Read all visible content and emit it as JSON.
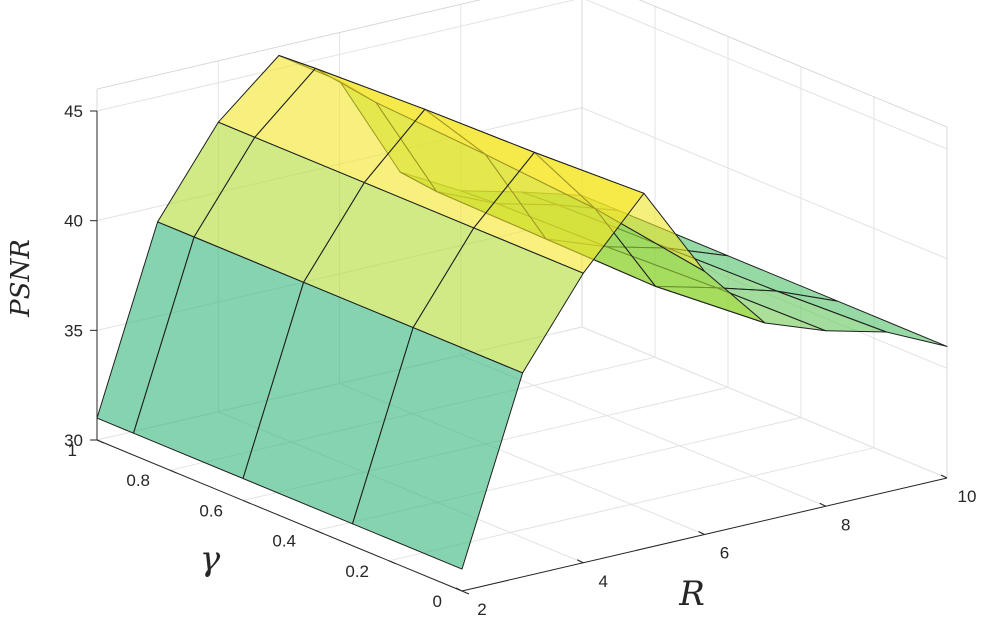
{
  "chart_data": {
    "type": "surface3d",
    "title": "",
    "xlabel": "R",
    "ylabel": "γ",
    "zlabel": "PSNR",
    "xlim": [
      2,
      10
    ],
    "ylim": [
      0,
      1
    ],
    "zlim": [
      30,
      45
    ],
    "grid": true,
    "colormap": "viridis (partial: teal to yellow-green), transparent faces",
    "x_ticks": [
      "2",
      "4",
      "6",
      "8",
      "10"
    ],
    "y_ticks": [
      "0",
      "0.2",
      "0.4",
      "0.6",
      "0.8",
      "1"
    ],
    "z_ticks": [
      "30",
      "35",
      "40",
      "45"
    ],
    "gamma_values": [
      0,
      0.3,
      0.6,
      0.9,
      1
    ],
    "R_values": [
      2,
      3,
      4,
      5,
      6,
      7,
      8,
      9,
      10
    ],
    "psnr": [
      [
        31.0,
        39.3,
        43.2,
        46.2,
        42.0,
        39.0,
        38.0,
        37.3,
        36.0
      ],
      [
        31.0,
        39.3,
        43.2,
        46.0,
        42.8,
        38.6,
        37.9,
        37.1,
        36.0
      ],
      [
        31.0,
        39.3,
        43.2,
        45.9,
        43.2,
        38.7,
        37.7,
        37.0,
        36.0
      ],
      [
        31.0,
        39.3,
        43.2,
        45.7,
        43.5,
        38.8,
        37.6,
        36.9,
        36.0
      ],
      [
        31.0,
        39.3,
        43.2,
        45.6,
        43.8,
        39.0,
        37.5,
        36.8,
        36.0
      ]
    ]
  }
}
